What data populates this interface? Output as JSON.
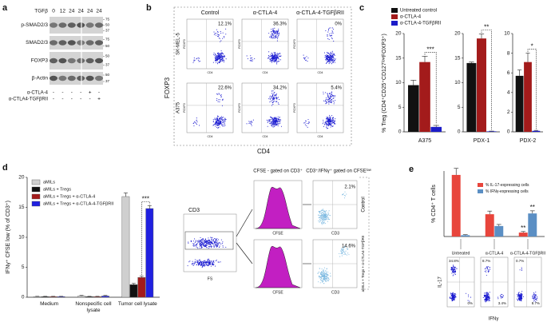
{
  "panel_labels": [
    "a",
    "b",
    "c",
    "d",
    "e"
  ],
  "blot": {
    "treatment_label": "TGFβ",
    "lanes": [
      "0",
      "12",
      "24",
      "24",
      "24",
      "24"
    ],
    "rows": [
      {
        "name": "p-SMAD2/3",
        "markers": [
          "75",
          "50",
          "37"
        ]
      },
      {
        "name": "SMAD2/3",
        "markers": [
          "75",
          "50"
        ]
      },
      {
        "name": "FOXP3",
        "markers": [
          "50",
          "37"
        ]
      },
      {
        "name": "β-Actin",
        "markers": [
          "50",
          "37"
        ]
      }
    ],
    "conditions": [
      {
        "name": "α-CTLA-4",
        "signs": [
          "-",
          "-",
          "-",
          "-",
          "+",
          "-"
        ]
      },
      {
        "name": "α-CTLA4-TGFβRII",
        "signs": [
          "-",
          "-",
          "-",
          "-",
          "-",
          "+"
        ]
      }
    ]
  },
  "flow_b": {
    "columns": [
      "Control",
      "α-CTLA-4",
      "α-CTLA-4-TGFβRII"
    ],
    "rows": [
      "SK-MEL-5",
      "A375"
    ],
    "percentages": [
      [
        "12.1%",
        "36.3%",
        "0%"
      ],
      [
        "22.6%",
        "34.2%",
        "5.4%"
      ]
    ],
    "y_axis": "FOXP3",
    "x_axis": "CD4"
  },
  "flow_d": {
    "gate_label": "CD3",
    "gate_x_axis": "FS",
    "histogram_title": "CFSE - gated on CD3⁺",
    "dot_title": "CD3⁺/IFNγ⁺ gated on CFSEˡᵒʷ",
    "histogram_x_axis": "CFSE",
    "dot_x_axis": "CD3",
    "percentages": [
      "2.1%",
      "14.6%"
    ],
    "conditions": [
      "Control",
      "aMILs + Tregs + α-CTLA4-TGFβRII"
    ]
  },
  "flow_e": {
    "y_axis": "IL-17",
    "x_axis": "IFNγ",
    "percentages": [
      [
        "34.8%",
        "0%"
      ],
      [
        "8.7%",
        "3.4%"
      ],
      [
        "0.7%",
        "8.7%"
      ]
    ]
  },
  "chart_data": [
    {
      "type": "bar",
      "y_label": "% Treg (CD4⁺CD25⁺CD127ˡᵒʷFOXP3⁺)",
      "categories": [
        "A375"
      ],
      "series": [
        {
          "name": "Untreated control",
          "color": "#111111",
          "values": [
            9.5
          ],
          "errors": [
            1.0
          ]
        },
        {
          "name": "α-CTLA-4",
          "color": "#a31b1b",
          "values": [
            14.2
          ],
          "errors": [
            1.2
          ]
        },
        {
          "name": "α-CTLA-4-TGFβRII",
          "color": "#1c1cc8",
          "values": [
            1.0
          ],
          "errors": [
            0.3
          ]
        }
      ],
      "ylim": [
        0,
        20
      ],
      "yticks": [
        0,
        5,
        10,
        15,
        20
      ],
      "significance": "***"
    },
    {
      "type": "bar",
      "categories": [
        "PDX-1"
      ],
      "series": [
        {
          "color": "#111111",
          "values": [
            14.0
          ],
          "errors": [
            0.2
          ]
        },
        {
          "color": "#a31b1b",
          "values": [
            19.0
          ],
          "errors": [
            0.9
          ]
        },
        {
          "color": "#1c1cc8",
          "values": [
            0.1
          ],
          "errors": [
            0.05
          ]
        }
      ],
      "ylim": [
        0,
        20
      ],
      "yticks": [
        0,
        5,
        10,
        15,
        20
      ],
      "significance": "**"
    },
    {
      "type": "bar",
      "categories": [
        "PDX-2"
      ],
      "series": [
        {
          "color": "#111111",
          "values": [
            5.7
          ],
          "errors": [
            0.6
          ]
        },
        {
          "color": "#a31b1b",
          "values": [
            7.1
          ],
          "errors": [
            0.9
          ]
        },
        {
          "color": "#1c1cc8",
          "values": [
            0.1
          ],
          "errors": [
            0.05
          ]
        }
      ],
      "ylim": [
        0,
        10
      ],
      "yticks": [
        0,
        2,
        4,
        6,
        8,
        10
      ],
      "significance": "*"
    },
    {
      "type": "bar",
      "y_label": "IFNγ⁺ CFSE low (% of CD3⁺)",
      "categories": [
        "Medium",
        "Nonspecific cell lysate",
        "Tumor cell lysate"
      ],
      "series": [
        {
          "name": "aMILs",
          "color": "#cfcfcf",
          "values": [
            0.1,
            0.2,
            16.8
          ],
          "errors": [
            0.05,
            0.1,
            0.6
          ]
        },
        {
          "name": "aMILs + Tregs",
          "color": "#111111",
          "values": [
            0.1,
            0.1,
            2.1
          ],
          "errors": [
            0.05,
            0.05,
            0.2
          ]
        },
        {
          "name": "aMILs + Tregs + α-CTLA-4",
          "color": "#a31b1b",
          "values": [
            0.1,
            0.1,
            3.3
          ],
          "errors": [
            0.05,
            0.05,
            0.2
          ]
        },
        {
          "name": "aMILs + Tregs + α-CTLA-4-TGFβRII",
          "color": "#2020e0",
          "values": [
            0.1,
            0.2,
            14.8
          ],
          "errors": [
            0.05,
            0.1,
            0.5
          ]
        }
      ],
      "ylim": [
        0,
        20
      ],
      "yticks": [
        0,
        5,
        10,
        15,
        20
      ],
      "significance": "***"
    },
    {
      "type": "bar",
      "y_label": "% CD4⁺ T cells",
      "categories": [
        "Untreated",
        "α-CTLA-4",
        "α-CTLA-4-TGFβRII"
      ],
      "series": [
        {
          "name": "% IL-17-expressing cells",
          "color": "#e8453c",
          "values": [
            23.5,
            8.5,
            1.5
          ],
          "errors": [
            2.5,
            1.2,
            0.4
          ]
        },
        {
          "name": "% IFNγ-expressing cells",
          "color": "#5b8fc4",
          "values": [
            0.5,
            4.0,
            8.8
          ],
          "errors": [
            0.2,
            0.6,
            1.0
          ]
        }
      ],
      "ylim": [
        0,
        25
      ],
      "significance": [
        "**",
        "**"
      ]
    }
  ]
}
